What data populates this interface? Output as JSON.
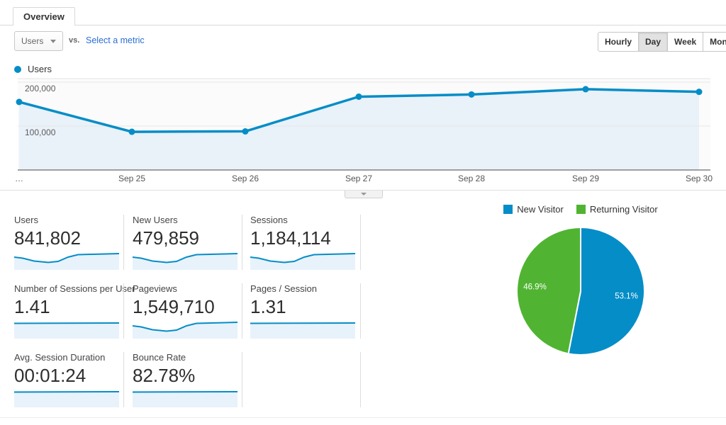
{
  "tab_bar": {
    "tabs": [
      {
        "label": "Overview",
        "selected": true
      }
    ]
  },
  "toolbar": {
    "metric_dropdown": {
      "value": "Users"
    },
    "vs_label": "vs.",
    "select_metric_link": "Select a metric",
    "granularity_buttons": [
      "Hourly",
      "Day",
      "Week",
      "Month"
    ],
    "granularity_selected": "Day"
  },
  "timeseries_legend": {
    "label": "Users"
  },
  "chart_data": [
    {
      "type": "line",
      "title": "Users",
      "x": [
        "…",
        "Sep 25",
        "Sep 26",
        "Sep 27",
        "Sep 28",
        "Sep 29",
        "Sep 30"
      ],
      "values": [
        155000,
        87000,
        88000,
        167000,
        172000,
        184000,
        178000
      ],
      "ylim": [
        0,
        208000
      ],
      "yticks": [
        100000,
        200000
      ],
      "ytick_labels": [
        "100,000",
        "200,000"
      ],
      "xlabel": "",
      "ylabel": "",
      "grid": true,
      "legend_position": "top-left",
      "line_color": "#058dc7",
      "area_fill_color": "#e9f1f9"
    },
    {
      "type": "pie",
      "labels": [
        "New Visitor",
        "Returning Visitor"
      ],
      "values": [
        53.1,
        46.9
      ],
      "value_labels": [
        "53.1%",
        "46.9%"
      ],
      "colors": [
        "#058dc7",
        "#50b432"
      ],
      "legend_position": "top"
    }
  ],
  "cards": [
    {
      "label": "Users",
      "value": "841,802",
      "spark": "dip"
    },
    {
      "label": "New Users",
      "value": "479,859",
      "spark": "dip"
    },
    {
      "label": "Sessions",
      "value": "1,184,114",
      "spark": "dip"
    },
    {
      "label": "Number of Sessions per User",
      "value": "1.41",
      "spark": "flat"
    },
    {
      "label": "Pageviews",
      "value": "1,549,710",
      "spark": "dip"
    },
    {
      "label": "Pages / Session",
      "value": "1.31",
      "spark": "flat"
    },
    {
      "label": "Avg. Session Duration",
      "value": "00:01:24",
      "spark": "flat"
    },
    {
      "label": "Bounce Rate",
      "value": "82.78%",
      "spark": "flat"
    }
  ],
  "colors": {
    "accent_blue": "#058dc7",
    "pie_green": "#50b432",
    "link_blue": "#2a6fd3"
  },
  "icons": {
    "dropdown_caret": "caret-down-icon",
    "collapse_caret": "caret-down-icon"
  }
}
